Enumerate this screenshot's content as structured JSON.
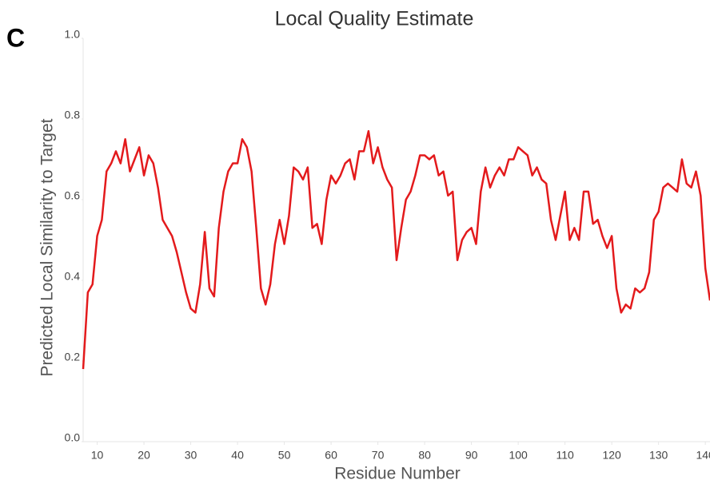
{
  "panel_label": "C",
  "chart_data": {
    "type": "line",
    "title": "Local Quality Estimate",
    "x_label": "Residue Number",
    "y_label": "Predicted Local Similarity to Target",
    "x": [
      7,
      8,
      9,
      10,
      11,
      12,
      13,
      14,
      15,
      16,
      17,
      18,
      19,
      20,
      21,
      22,
      23,
      24,
      25,
      26,
      27,
      28,
      29,
      30,
      31,
      32,
      33,
      34,
      35,
      36,
      37,
      38,
      39,
      40,
      41,
      42,
      43,
      44,
      45,
      46,
      47,
      48,
      49,
      50,
      51,
      52,
      53,
      54,
      55,
      56,
      57,
      58,
      59,
      60,
      61,
      62,
      63,
      64,
      65,
      66,
      67,
      68,
      69,
      70,
      71,
      72,
      73,
      74,
      75,
      76,
      77,
      78,
      79,
      80,
      81,
      82,
      83,
      84,
      85,
      86,
      87,
      88,
      89,
      90,
      91,
      92,
      93,
      94,
      95,
      96,
      97,
      98,
      99,
      100,
      101,
      102,
      103,
      104,
      105,
      106,
      107,
      108,
      109,
      110,
      111,
      112,
      113,
      114,
      115,
      116,
      117,
      118,
      119,
      120,
      121,
      122,
      123,
      124,
      125,
      126,
      127,
      128,
      129,
      130,
      131,
      132,
      133,
      134,
      135,
      136,
      137,
      138,
      139,
      140,
      141
    ],
    "series": [
      {
        "color": "#e31a1c",
        "values": [
          0.18,
          0.37,
          0.39,
          0.51,
          0.55,
          0.67,
          0.69,
          0.72,
          0.69,
          0.75,
          0.67,
          0.7,
          0.73,
          0.66,
          0.71,
          0.69,
          0.63,
          0.55,
          0.53,
          0.51,
          0.47,
          0.42,
          0.37,
          0.33,
          0.32,
          0.39,
          0.52,
          0.38,
          0.36,
          0.53,
          0.62,
          0.67,
          0.69,
          0.69,
          0.75,
          0.73,
          0.67,
          0.53,
          0.38,
          0.34,
          0.39,
          0.49,
          0.55,
          0.49,
          0.56,
          0.68,
          0.67,
          0.65,
          0.68,
          0.53,
          0.54,
          0.49,
          0.6,
          0.66,
          0.64,
          0.66,
          0.69,
          0.7,
          0.65,
          0.72,
          0.72,
          0.77,
          0.69,
          0.73,
          0.68,
          0.65,
          0.63,
          0.45,
          0.53,
          0.6,
          0.62,
          0.66,
          0.71,
          0.71,
          0.7,
          0.71,
          0.66,
          0.67,
          0.61,
          0.62,
          0.45,
          0.5,
          0.52,
          0.53,
          0.49,
          0.62,
          0.68,
          0.63,
          0.66,
          0.68,
          0.66,
          0.7,
          0.7,
          0.73,
          0.72,
          0.71,
          0.66,
          0.68,
          0.65,
          0.64,
          0.55,
          0.5,
          0.56,
          0.62,
          0.5,
          0.53,
          0.5,
          0.62,
          0.62,
          0.54,
          0.55,
          0.51,
          0.48,
          0.51,
          0.38,
          0.32,
          0.34,
          0.33,
          0.38,
          0.37,
          0.38,
          0.42,
          0.55,
          0.57,
          0.63,
          0.64,
          0.63,
          0.62,
          0.7,
          0.64,
          0.63,
          0.67,
          0.61,
          0.43,
          0.35
        ]
      }
    ],
    "xlim": [
      7,
      141
    ],
    "ylim": [
      0,
      1
    ],
    "xticks": [
      10,
      20,
      30,
      40,
      50,
      60,
      70,
      80,
      90,
      100,
      110,
      120,
      130,
      140
    ],
    "yticks": [
      {
        "value": 0,
        "label": "0.0"
      },
      {
        "value": 0.2,
        "label": "0.2"
      },
      {
        "value": 0.4,
        "label": "0.4"
      },
      {
        "value": 0.6,
        "label": "0.6"
      },
      {
        "value": 0.8,
        "label": "0.8"
      },
      {
        "value": 1,
        "label": "1.0"
      }
    ],
    "grid": false
  }
}
